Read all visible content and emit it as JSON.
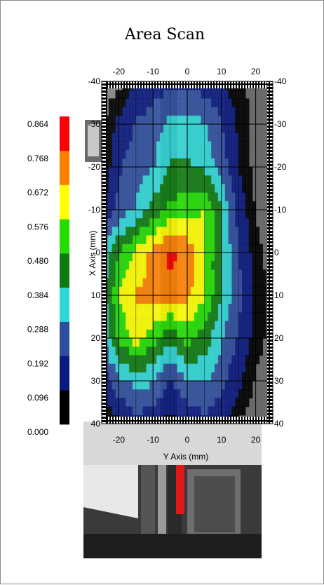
{
  "chart_data": {
    "type": "heatmap",
    "title": "Area Scan",
    "xlabel": "Y Axis (mm)",
    "ylabel": "X Axis (mm)",
    "x_range": [
      -25,
      25
    ],
    "y_range": [
      -40,
      40
    ],
    "x_ticks": [
      -20,
      -10,
      0,
      10,
      20
    ],
    "y_ticks": [
      -40,
      -30,
      -20,
      -10,
      0,
      10,
      20,
      30,
      40
    ],
    "grid": true,
    "x": [
      -25,
      -20,
      -15,
      -10,
      -5,
      0,
      5,
      10,
      15,
      20,
      25
    ],
    "y": [
      -40,
      -30,
      -20,
      -10,
      0,
      10,
      20,
      30,
      40
    ],
    "z": [
      [
        0.0,
        0.0,
        0.1,
        0.14,
        0.16,
        0.16,
        0.14,
        0.1,
        0.04,
        0.0,
        0.0
      ],
      [
        0.0,
        0.12,
        0.2,
        0.24,
        0.32,
        0.33,
        0.3,
        0.2,
        0.08,
        0.0,
        0.0
      ],
      [
        0.0,
        0.18,
        0.24,
        0.28,
        0.4,
        0.4,
        0.36,
        0.24,
        0.1,
        0.0,
        0.0
      ],
      [
        0.1,
        0.22,
        0.3,
        0.42,
        0.5,
        0.54,
        0.58,
        0.4,
        0.15,
        0.02,
        0.0
      ],
      [
        0.3,
        0.48,
        0.6,
        0.7,
        0.8,
        0.74,
        0.58,
        0.38,
        0.2,
        0.05,
        0.0
      ],
      [
        0.32,
        0.58,
        0.68,
        0.7,
        0.74,
        0.7,
        0.58,
        0.38,
        0.22,
        0.08,
        0.0
      ],
      [
        0.26,
        0.5,
        0.62,
        0.52,
        0.4,
        0.52,
        0.44,
        0.3,
        0.18,
        0.06,
        0.0
      ],
      [
        0.14,
        0.26,
        0.32,
        0.3,
        0.18,
        0.28,
        0.3,
        0.22,
        0.12,
        0.02,
        0.0
      ],
      [
        0.0,
        0.08,
        0.16,
        0.12,
        0.05,
        0.12,
        0.16,
        0.12,
        0.02,
        0.0,
        0.0
      ]
    ],
    "colorbar": {
      "levels": [
        0.0,
        0.096,
        0.192,
        0.288,
        0.384,
        0.48,
        0.576,
        0.672,
        0.768,
        0.864
      ],
      "labels": [
        "0.000",
        "0.096",
        "0.192",
        "0.288",
        "0.384",
        "0.480",
        "0.576",
        "0.672",
        "0.768",
        "0.864"
      ],
      "colors": [
        "#000000",
        "#0a1a80",
        "#2e4e9e",
        "#2ed6d6",
        "#0e7a10",
        "#22dd00",
        "#ffff00",
        "#ff8000",
        "#ff0000"
      ]
    }
  }
}
